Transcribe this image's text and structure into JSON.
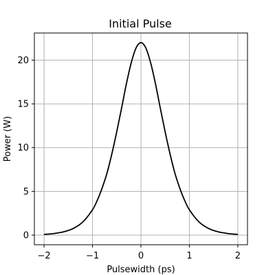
{
  "chart_data": {
    "type": "line",
    "title": "Initial Pulse",
    "xlabel": "Pulsewidth (ps)",
    "ylabel": "Power (W)",
    "xlim": [
      -2.2,
      2.2
    ],
    "ylim": [
      -1.1,
      23.1
    ],
    "xticks": [
      -2,
      -1,
      0,
      1,
      2
    ],
    "xtick_labels": [
      "−2",
      "−1",
      "0",
      "1",
      "2"
    ],
    "yticks": [
      0,
      5,
      10,
      15,
      20
    ],
    "ytick_labels": [
      "0",
      "5",
      "10",
      "15",
      "20"
    ],
    "grid": true,
    "series": [
      {
        "color": "#000000",
        "x": [
          -2.0,
          -1.8,
          -1.6,
          -1.4,
          -1.2,
          -1.0,
          -0.9,
          -0.8,
          -0.7,
          -0.6,
          -0.5,
          -0.4,
          -0.3,
          -0.2,
          -0.1,
          0.0,
          0.1,
          0.2,
          0.3,
          0.4,
          0.5,
          0.6,
          0.7,
          0.8,
          0.9,
          1.0,
          1.2,
          1.4,
          1.6,
          1.8,
          2.0
        ],
        "y": [
          0.08,
          0.18,
          0.37,
          0.75,
          1.5,
          2.9,
          4.0,
          5.4,
          7.1,
          9.3,
          11.8,
          14.5,
          17.3,
          19.7,
          21.4,
          22.0,
          21.4,
          19.7,
          17.3,
          14.5,
          11.8,
          9.3,
          7.1,
          5.4,
          4.0,
          2.9,
          1.5,
          0.75,
          0.37,
          0.18,
          0.08
        ]
      }
    ]
  }
}
